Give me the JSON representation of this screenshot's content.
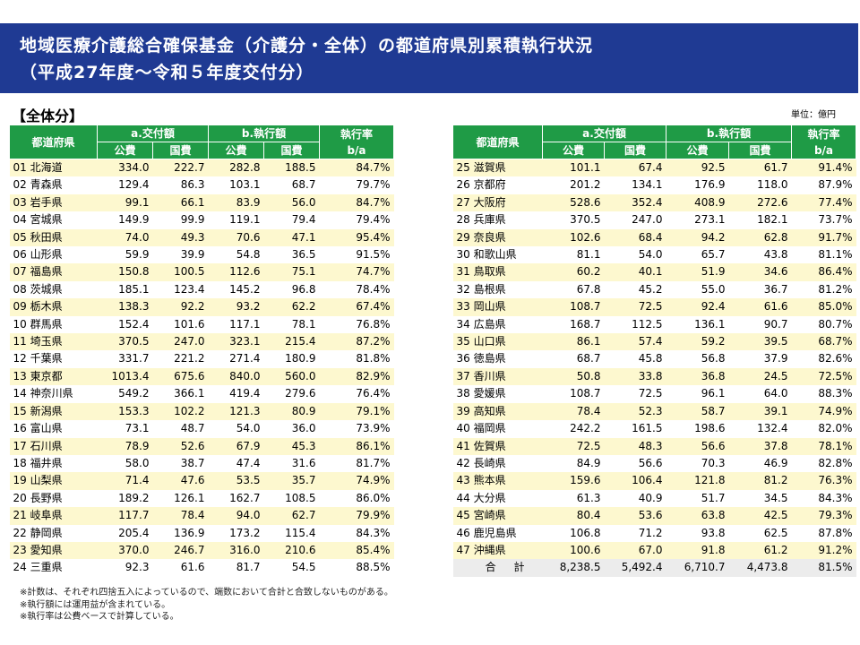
{
  "header": {
    "title_line1": "地域医療介護総合確保基金（介護分・全体）の都道府県別累積執行状況",
    "title_line2": "（平成27年度～令和５年度交付分）"
  },
  "section_label": "【全体分】",
  "unit_label": "単位：億円",
  "colors": {
    "title_bg": "#1f3a93",
    "header_green": "#1f9b46",
    "row_stripe": "#fdf8cf"
  },
  "chart_data": {
    "type": "table",
    "columns": {
      "prefecture": "都道府県",
      "grant": "a.交付額",
      "executed": "b.執行額",
      "public": "公費",
      "national": "国費",
      "rate": "執行率",
      "rate_sub": "b/a"
    },
    "left_rows": [
      [
        "01 北海道",
        "334.0",
        "222.7",
        "282.8",
        "188.5",
        "84.7%"
      ],
      [
        "02 青森県",
        "129.4",
        "86.3",
        "103.1",
        "68.7",
        "79.7%"
      ],
      [
        "03 岩手県",
        "99.1",
        "66.1",
        "83.9",
        "56.0",
        "84.7%"
      ],
      [
        "04 宮城県",
        "149.9",
        "99.9",
        "119.1",
        "79.4",
        "79.4%"
      ],
      [
        "05 秋田県",
        "74.0",
        "49.3",
        "70.6",
        "47.1",
        "95.4%"
      ],
      [
        "06 山形県",
        "59.9",
        "39.9",
        "54.8",
        "36.5",
        "91.5%"
      ],
      [
        "07 福島県",
        "150.8",
        "100.5",
        "112.6",
        "75.1",
        "74.7%"
      ],
      [
        "08 茨城県",
        "185.1",
        "123.4",
        "145.2",
        "96.8",
        "78.4%"
      ],
      [
        "09 栃木県",
        "138.3",
        "92.2",
        "93.2",
        "62.2",
        "67.4%"
      ],
      [
        "10 群馬県",
        "152.4",
        "101.6",
        "117.1",
        "78.1",
        "76.8%"
      ],
      [
        "11 埼玉県",
        "370.5",
        "247.0",
        "323.1",
        "215.4",
        "87.2%"
      ],
      [
        "12 千葉県",
        "331.7",
        "221.2",
        "271.4",
        "180.9",
        "81.8%"
      ],
      [
        "13 東京都",
        "1013.4",
        "675.6",
        "840.0",
        "560.0",
        "82.9%"
      ],
      [
        "14 神奈川県",
        "549.2",
        "366.1",
        "419.4",
        "279.6",
        "76.4%"
      ],
      [
        "15 新潟県",
        "153.3",
        "102.2",
        "121.3",
        "80.9",
        "79.1%"
      ],
      [
        "16 富山県",
        "73.1",
        "48.7",
        "54.0",
        "36.0",
        "73.9%"
      ],
      [
        "17 石川県",
        "78.9",
        "52.6",
        "67.9",
        "45.3",
        "86.1%"
      ],
      [
        "18 福井県",
        "58.0",
        "38.7",
        "47.4",
        "31.6",
        "81.7%"
      ],
      [
        "19 山梨県",
        "71.4",
        "47.6",
        "53.5",
        "35.7",
        "74.9%"
      ],
      [
        "20 長野県",
        "189.2",
        "126.1",
        "162.7",
        "108.5",
        "86.0%"
      ],
      [
        "21 岐阜県",
        "117.7",
        "78.4",
        "94.0",
        "62.7",
        "79.9%"
      ],
      [
        "22 静岡県",
        "205.4",
        "136.9",
        "173.2",
        "115.4",
        "84.3%"
      ],
      [
        "23 愛知県",
        "370.0",
        "246.7",
        "316.0",
        "210.6",
        "85.4%"
      ],
      [
        "24 三重県",
        "92.3",
        "61.6",
        "81.7",
        "54.5",
        "88.5%"
      ]
    ],
    "right_rows": [
      [
        "25 滋賀県",
        "101.1",
        "67.4",
        "92.5",
        "61.7",
        "91.4%"
      ],
      [
        "26 京都府",
        "201.2",
        "134.1",
        "176.9",
        "118.0",
        "87.9%"
      ],
      [
        "27 大阪府",
        "528.6",
        "352.4",
        "408.9",
        "272.6",
        "77.4%"
      ],
      [
        "28 兵庫県",
        "370.5",
        "247.0",
        "273.1",
        "182.1",
        "73.7%"
      ],
      [
        "29 奈良県",
        "102.6",
        "68.4",
        "94.2",
        "62.8",
        "91.7%"
      ],
      [
        "30 和歌山県",
        "81.1",
        "54.0",
        "65.7",
        "43.8",
        "81.1%"
      ],
      [
        "31 鳥取県",
        "60.2",
        "40.1",
        "51.9",
        "34.6",
        "86.4%"
      ],
      [
        "32 島根県",
        "67.8",
        "45.2",
        "55.0",
        "36.7",
        "81.2%"
      ],
      [
        "33 岡山県",
        "108.7",
        "72.5",
        "92.4",
        "61.6",
        "85.0%"
      ],
      [
        "34 広島県",
        "168.7",
        "112.5",
        "136.1",
        "90.7",
        "80.7%"
      ],
      [
        "35 山口県",
        "86.1",
        "57.4",
        "59.2",
        "39.5",
        "68.7%"
      ],
      [
        "36 徳島県",
        "68.7",
        "45.8",
        "56.8",
        "37.9",
        "82.6%"
      ],
      [
        "37 香川県",
        "50.8",
        "33.8",
        "36.8",
        "24.5",
        "72.5%"
      ],
      [
        "38 愛媛県",
        "108.7",
        "72.5",
        "96.1",
        "64.0",
        "88.3%"
      ],
      [
        "39 高知県",
        "78.4",
        "52.3",
        "58.7",
        "39.1",
        "74.9%"
      ],
      [
        "40 福岡県",
        "242.2",
        "161.5",
        "198.6",
        "132.4",
        "82.0%"
      ],
      [
        "41 佐賀県",
        "72.5",
        "48.3",
        "56.6",
        "37.8",
        "78.1%"
      ],
      [
        "42 長崎県",
        "84.9",
        "56.6",
        "70.3",
        "46.9",
        "82.8%"
      ],
      [
        "43 熊本県",
        "159.6",
        "106.4",
        "121.8",
        "81.2",
        "76.3%"
      ],
      [
        "44 大分県",
        "61.3",
        "40.9",
        "51.7",
        "34.5",
        "84.3%"
      ],
      [
        "45 宮崎県",
        "80.4",
        "53.6",
        "63.8",
        "42.5",
        "79.3%"
      ],
      [
        "46 鹿児島県",
        "106.8",
        "71.2",
        "93.8",
        "62.5",
        "87.8%"
      ],
      [
        "47 沖縄県",
        "100.6",
        "67.0",
        "91.8",
        "61.2",
        "91.2%"
      ]
    ],
    "total_row": [
      "合 計",
      "8,238.5",
      "5,492.4",
      "6,710.7",
      "4,473.8",
      "81.5%"
    ]
  },
  "notes": [
    "※計数は、それぞれ四捨五入によっているので、端数において合計と合致しないものがある。",
    "※執行額には運用益が含まれている。",
    "※執行率は公費ベースで計算している。"
  ]
}
